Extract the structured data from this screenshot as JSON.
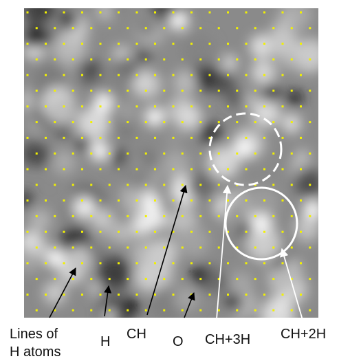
{
  "labels": {
    "lines_of_h": [
      "Lines of",
      "H atoms"
    ],
    "h": "H",
    "ch": "CH",
    "o": "O",
    "ch_3h": "CH+3H",
    "ch_2h": "CH+2H"
  }
}
